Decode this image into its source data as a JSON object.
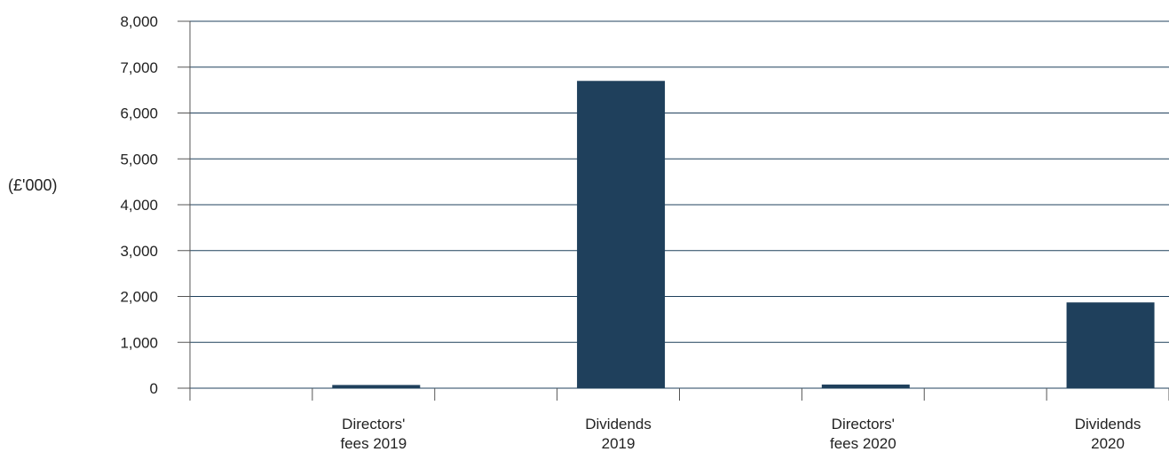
{
  "chart_data": {
    "type": "bar",
    "title": "",
    "xlabel": "",
    "ylabel": "(£'000)",
    "ylim": [
      0,
      8000
    ],
    "yticks": [
      0,
      1000,
      2000,
      3000,
      4000,
      5000,
      6000,
      7000,
      8000
    ],
    "ytick_labels": [
      "0",
      "1,000",
      "2,000",
      "3,000",
      "4,000",
      "5,000",
      "6,000",
      "7,000",
      "8,000"
    ],
    "categories": [
      [
        "Directors'",
        "fees 2019"
      ],
      [
        "Dividends",
        "2019"
      ],
      [
        "Directors'",
        "fees 2020"
      ],
      [
        "Dividends",
        "2020"
      ]
    ],
    "values": [
      70,
      6700,
      80,
      1870
    ],
    "grid": true,
    "legend": "none",
    "bar_color": "#1f405c",
    "grid_color": "#1f405c",
    "axis_color": "#555555"
  }
}
